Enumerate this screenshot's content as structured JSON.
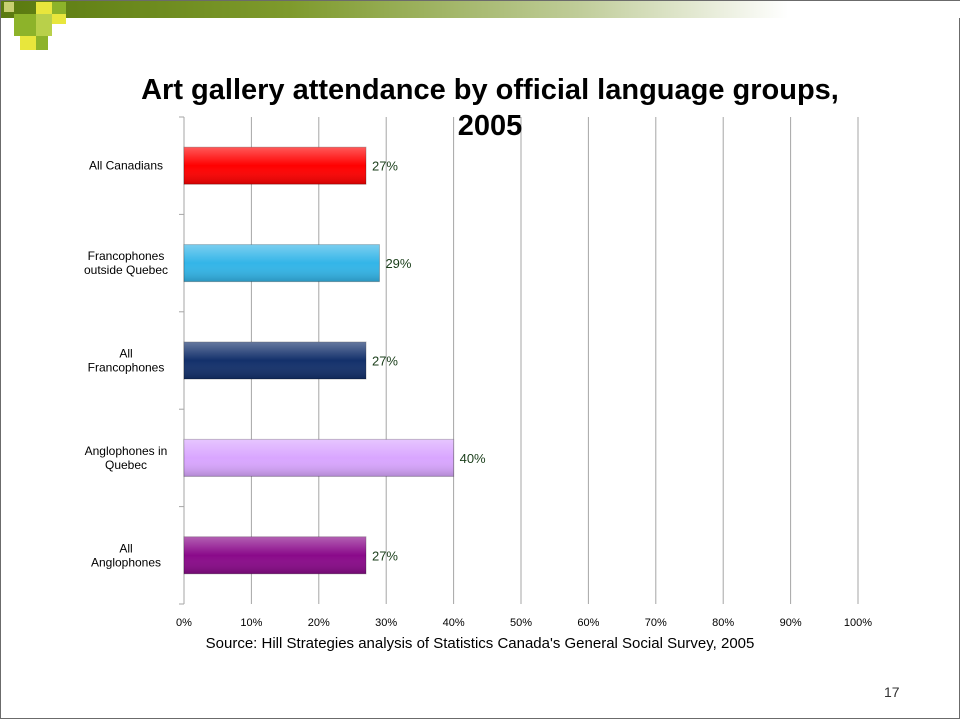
{
  "slide": {
    "source": "Source: Hill Strategies analysis of Statistics Canada's General Social Survey, 2005",
    "page_number": "17"
  },
  "colors": {
    "band_dark": "#5a7a10",
    "corner_green": "#8db32a",
    "corner_yellow": "#e8e63c",
    "gridline": "#a6a6a6",
    "data_label": "#1a3e1a"
  },
  "chart_data": {
    "type": "bar",
    "orientation": "horizontal",
    "title": "Art gallery attendance by official language groups, 2005",
    "xlabel": "",
    "ylabel": "",
    "xlim": [
      0,
      100
    ],
    "x_ticks": [
      "0%",
      "10%",
      "20%",
      "30%",
      "40%",
      "50%",
      "60%",
      "70%",
      "80%",
      "90%",
      "100%"
    ],
    "grid": true,
    "legend": "none",
    "categories": [
      [
        "All Canadians"
      ],
      [
        "Francophones",
        "outside Quebec"
      ],
      [
        "All",
        "Francophones"
      ],
      [
        "Anglophones in",
        "Quebec"
      ],
      [
        "All",
        "Anglophones"
      ]
    ],
    "values": [
      27,
      29,
      27,
      40,
      27
    ],
    "data_labels": [
      "27%",
      "29%",
      "27%",
      "40%",
      "27%"
    ],
    "bar_colors": [
      "#ff0000",
      "#33b5e8",
      "#13306b",
      "#d9a6ff",
      "#8a0a8a"
    ]
  }
}
